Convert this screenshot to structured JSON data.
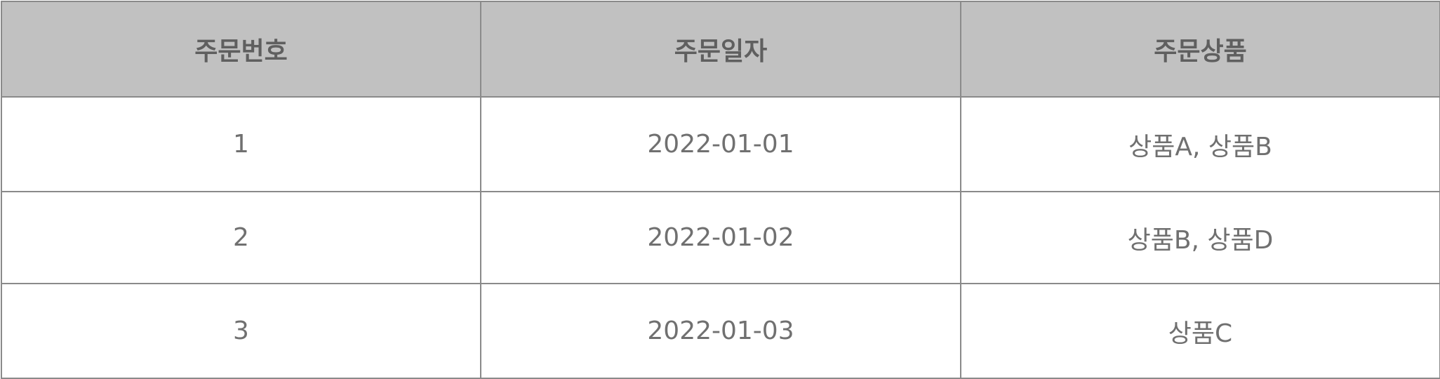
{
  "table": {
    "headers": [
      "주문번호",
      "주문일자",
      "주문상품"
    ],
    "rows": [
      [
        "1",
        "2022-01-01",
        "상품A, 상품B"
      ],
      [
        "2",
        "2022-01-02",
        "상품B, 상품D"
      ],
      [
        "3",
        "2022-01-03",
        "상품C"
      ]
    ]
  },
  "colors": {
    "header_background": "#c1c1c1",
    "border": "#8a8a8a",
    "text": "#707070"
  }
}
